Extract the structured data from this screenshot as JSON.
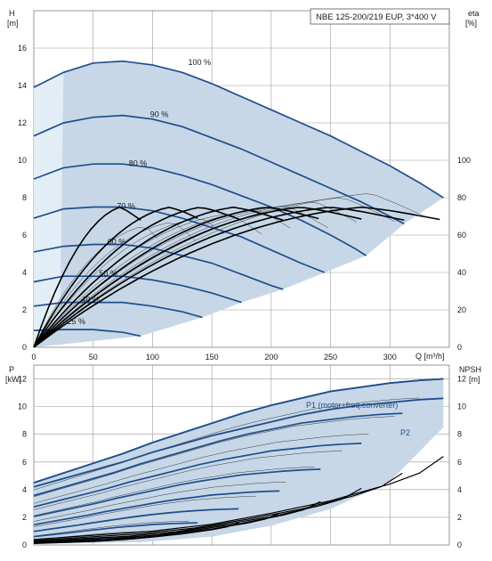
{
  "chart_data": [
    {
      "id": "head",
      "type": "line",
      "title": "NBE 125-200/219 EUP, 3*400 V",
      "ylabel_left": "H",
      "ylabel_left_unit": "[m]",
      "ylabel_right": "eta",
      "ylabel_right_unit": "[%]",
      "xlabel": "Q [m³/h]",
      "xlim": [
        0,
        350
      ],
      "ylim": [
        0,
        18
      ],
      "x_ticks": [
        0,
        50,
        100,
        150,
        200,
        250,
        300
      ],
      "y_ticks": [
        0,
        2,
        4,
        6,
        8,
        10,
        12,
        14,
        16
      ],
      "y2lim": [
        0,
        180
      ],
      "y2_ticks": [
        0,
        20,
        40,
        60,
        80,
        100
      ],
      "grid": true,
      "speed_labels": [
        "100 %",
        "90 %",
        "80 %",
        "70 %",
        "60 %",
        "50 %",
        "40 %",
        "25 %"
      ],
      "series": [
        {
          "label": "100 %",
          "x": [
            0,
            25,
            50,
            75,
            100,
            125,
            150,
            175,
            200,
            225,
            250,
            275,
            300,
            325,
            345
          ],
          "y": [
            13.9,
            14.7,
            15.2,
            15.3,
            15.1,
            14.7,
            14.1,
            13.4,
            12.7,
            12.0,
            11.3,
            10.5,
            9.7,
            8.8,
            8.0
          ]
        },
        {
          "label": "90 %",
          "x": [
            0,
            25,
            50,
            75,
            100,
            125,
            150,
            175,
            200,
            225,
            250,
            275,
            300,
            312
          ],
          "y": [
            11.3,
            12.0,
            12.3,
            12.4,
            12.2,
            11.8,
            11.2,
            10.6,
            9.9,
            9.2,
            8.5,
            7.8,
            7.0,
            6.6
          ]
        },
        {
          "label": "80 %",
          "x": [
            0,
            25,
            50,
            75,
            100,
            125,
            150,
            175,
            200,
            225,
            250,
            270,
            280
          ],
          "y": [
            9.0,
            9.6,
            9.8,
            9.8,
            9.6,
            9.2,
            8.7,
            8.1,
            7.5,
            6.8,
            6.0,
            5.3,
            4.9
          ]
        },
        {
          "label": "70 %",
          "x": [
            0,
            25,
            50,
            75,
            100,
            125,
            150,
            175,
            200,
            225,
            245
          ],
          "y": [
            6.9,
            7.4,
            7.5,
            7.5,
            7.3,
            6.9,
            6.4,
            5.9,
            5.2,
            4.5,
            4.0
          ]
        },
        {
          "label": "60 %",
          "x": [
            0,
            25,
            50,
            75,
            100,
            125,
            150,
            175,
            200,
            210
          ],
          "y": [
            5.1,
            5.4,
            5.5,
            5.5,
            5.3,
            4.9,
            4.5,
            3.9,
            3.3,
            3.1
          ]
        },
        {
          "label": "50 %",
          "x": [
            0,
            25,
            50,
            75,
            100,
            125,
            150,
            175
          ],
          "y": [
            3.5,
            3.8,
            3.8,
            3.8,
            3.6,
            3.3,
            2.9,
            2.4
          ]
        },
        {
          "label": "40 %",
          "x": [
            0,
            25,
            50,
            75,
            100,
            125,
            142
          ],
          "y": [
            2.2,
            2.4,
            2.4,
            2.4,
            2.2,
            1.9,
            1.6
          ]
        },
        {
          "label": "25 %",
          "x": [
            0,
            25,
            50,
            75,
            90
          ],
          "y": [
            0.9,
            0.95,
            0.95,
            0.8,
            0.6
          ]
        }
      ],
      "efficiency": {
        "x": [
          0,
          25,
          50,
          75,
          100,
          125,
          150,
          175,
          200,
          225,
          250,
          275,
          300
        ],
        "y": [
          0,
          35,
          52,
          60,
          66,
          70,
          73,
          75,
          76,
          76.5,
          76.8,
          76.5,
          75
        ]
      }
    },
    {
      "id": "power",
      "type": "line",
      "ylabel_left": "P",
      "ylabel_left_unit": "[kW]",
      "ylabel_right": "NPSH",
      "ylabel_right_unit": "[m]",
      "xlim": [
        0,
        350
      ],
      "ylim": [
        0,
        13
      ],
      "y_ticks": [
        0,
        2,
        4,
        6,
        8,
        10,
        12
      ],
      "y2lim": [
        0,
        13
      ],
      "y2_ticks": [
        0,
        2,
        4,
        6,
        8,
        10,
        12
      ],
      "grid": true,
      "legend": [
        "P1 (motor+freq.converter)",
        "P2"
      ],
      "series": [
        {
          "name": "P1 (motor+freq.converter)",
          "x": [
            0,
            25,
            50,
            75,
            100,
            125,
            150,
            175,
            200,
            225,
            250,
            275,
            300,
            325,
            345
          ],
          "y": [
            4.5,
            5.2,
            5.9,
            6.6,
            7.4,
            8.1,
            8.8,
            9.5,
            10.1,
            10.6,
            11.1,
            11.4,
            11.7,
            11.9,
            12.0
          ]
        },
        {
          "name": "P2",
          "x": [
            0,
            25,
            50,
            75,
            100,
            125,
            150,
            175,
            200,
            225,
            250,
            275,
            300,
            325,
            345
          ],
          "y": [
            4.2,
            4.8,
            5.4,
            6.0,
            6.7,
            7.3,
            7.9,
            8.4,
            8.9,
            9.4,
            9.8,
            10.1,
            10.3,
            10.5,
            10.6
          ]
        }
      ],
      "npsh": {
        "x": [
          0,
          50,
          100,
          150,
          200,
          250,
          300,
          325,
          345
        ],
        "y": [
          0.4,
          0.7,
          1.0,
          1.5,
          2.3,
          3.2,
          4.4,
          5.2,
          6.4
        ]
      }
    }
  ]
}
